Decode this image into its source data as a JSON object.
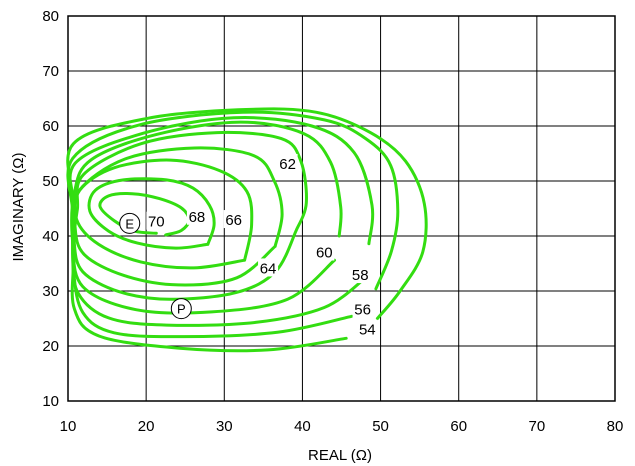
{
  "chart_data": {
    "type": "line",
    "xlabel": "REAL (Ω)",
    "ylabel": "IMAGINARY (Ω)",
    "xlim": [
      10,
      80
    ],
    "ylim": [
      10,
      80
    ],
    "x_ticks": [
      10,
      20,
      30,
      40,
      50,
      60,
      70,
      80
    ],
    "y_ticks": [
      10,
      20,
      30,
      40,
      50,
      60,
      70,
      80
    ],
    "grid": true,
    "line_color": "#33dd11",
    "contours": [
      {
        "label": "70",
        "label_pos": [
          21.3,
          42.6
        ],
        "points": [
          [
            21.3,
            40.5
          ],
          [
            18.5,
            40.9
          ],
          [
            15.9,
            42.8
          ],
          [
            14.1,
            45.4
          ],
          [
            15.2,
            47.3
          ],
          [
            18.2,
            47.7
          ],
          [
            21.7,
            46.8
          ],
          [
            24.5,
            45.1
          ],
          [
            25.5,
            42.9
          ],
          [
            24.5,
            41.0
          ],
          [
            22.5,
            40.2
          ]
        ]
      },
      {
        "label": "68",
        "label_pos": [
          26.5,
          43.5
        ],
        "points": [
          [
            27.9,
            38.5
          ],
          [
            23.8,
            37.8
          ],
          [
            18.9,
            38.7
          ],
          [
            15.2,
            40.9
          ],
          [
            12.8,
            44.5
          ],
          [
            13.5,
            48.3
          ],
          [
            17.1,
            50.2
          ],
          [
            22.6,
            50.2
          ],
          [
            26.0,
            48.7
          ],
          [
            28.1,
            45.6
          ],
          [
            28.7,
            42.1
          ],
          [
            27.9,
            38.5
          ]
        ]
      },
      {
        "label": "66",
        "label_pos": [
          31.2,
          42.9
        ],
        "points": [
          [
            32.6,
            35.6
          ],
          [
            26.1,
            34.2
          ],
          [
            19.3,
            35.3
          ],
          [
            13.9,
            38.5
          ],
          [
            11.1,
            43.0
          ],
          [
            11.5,
            48.3
          ],
          [
            15.9,
            52.4
          ],
          [
            23.1,
            53.8
          ],
          [
            29.4,
            51.9
          ],
          [
            32.9,
            48.1
          ],
          [
            33.5,
            42.0
          ],
          [
            32.6,
            35.6
          ]
        ]
      },
      {
        "label": "64",
        "label_pos": [
          35.6,
          34.1
        ],
        "points": [
          [
            36.5,
            38.1
          ],
          [
            31.6,
            32.4
          ],
          [
            24.1,
            31.1
          ],
          [
            17.2,
            32.8
          ],
          [
            12.1,
            36.6
          ],
          [
            10.9,
            41.8
          ],
          [
            11.4,
            48.2
          ],
          [
            17.3,
            54.0
          ],
          [
            26.2,
            56.0
          ],
          [
            33.8,
            54.6
          ],
          [
            36.4,
            50.0
          ],
          [
            37.4,
            44.0
          ],
          [
            36.5,
            38.1
          ]
        ]
      },
      {
        "label": "62",
        "label_pos": [
          38.1,
          53.1
        ],
        "points": [
          [
            39.2,
            41.0
          ],
          [
            36.6,
            33.6
          ],
          [
            31.5,
            29.7
          ],
          [
            23.0,
            28.5
          ],
          [
            16.5,
            29.9
          ],
          [
            11.9,
            33.5
          ],
          [
            10.8,
            38.7
          ],
          [
            11.2,
            44.9
          ],
          [
            12.0,
            51.2
          ],
          [
            19.4,
            56.8
          ],
          [
            29.1,
            58.8
          ],
          [
            37.3,
            57.7
          ],
          [
            39.8,
            53.6
          ],
          [
            40.5,
            46.0
          ],
          [
            39.2,
            41.0
          ]
        ]
      },
      {
        "label": "60",
        "label_pos": [
          42.8,
          37.0
        ],
        "points": [
          [
            44.1,
            35.6
          ],
          [
            38.1,
            28.5
          ],
          [
            28.4,
            26.2
          ],
          [
            18.7,
            26.6
          ],
          [
            11.9,
            30.8
          ],
          [
            10.6,
            38.8
          ],
          [
            10.8,
            47.8
          ],
          [
            13.0,
            53.9
          ],
          [
            21.4,
            58.5
          ],
          [
            32.1,
            60.7
          ],
          [
            40.2,
            58.6
          ],
          [
            43.6,
            53.4
          ],
          [
            44.9,
            45.3
          ],
          [
            44.7,
            40.0
          ]
        ]
      },
      {
        "label": "58",
        "label_pos": [
          47.4,
          32.9
        ],
        "points": [
          [
            48.0,
            32.3
          ],
          [
            42.8,
            27.0
          ],
          [
            34.0,
            24.3
          ],
          [
            22.6,
            23.8
          ],
          [
            15.2,
            25.1
          ],
          [
            11.3,
            29.6
          ],
          [
            10.6,
            36.4
          ],
          [
            10.9,
            44.4
          ],
          [
            10.9,
            53.2
          ],
          [
            19.7,
            58.7
          ],
          [
            31.2,
            61.5
          ],
          [
            41.2,
            60.0
          ],
          [
            46.6,
            55.2
          ],
          [
            48.9,
            45.6
          ],
          [
            48.5,
            38.6
          ]
        ]
      },
      {
        "label": "56",
        "label_pos": [
          47.7,
          26.6
        ],
        "points": [
          [
            46.3,
            25.4
          ],
          [
            36.8,
            22.5
          ],
          [
            24.8,
            21.7
          ],
          [
            15.9,
            22.4
          ],
          [
            11.9,
            26.1
          ],
          [
            10.7,
            33.8
          ],
          [
            10.6,
            44.2
          ],
          [
            10.6,
            54.1
          ],
          [
            18.9,
            60.1
          ],
          [
            32.4,
            62.5
          ],
          [
            42.8,
            61.1
          ],
          [
            48.1,
            57.7
          ],
          [
            51.3,
            52.8
          ],
          [
            52.2,
            44.5
          ],
          [
            51.4,
            37.3
          ],
          [
            49.4,
            30.4
          ]
        ]
      },
      {
        "label": "54",
        "label_pos": [
          48.3,
          23.0
        ],
        "points": [
          [
            45.6,
            21.4
          ],
          [
            35.6,
            19.3
          ],
          [
            24.3,
            19.6
          ],
          [
            14.0,
            21.8
          ],
          [
            10.8,
            26.8
          ],
          [
            10.7,
            35.9
          ],
          [
            10.6,
            46.5
          ],
          [
            10.7,
            56.8
          ],
          [
            20.2,
            61.4
          ],
          [
            32.8,
            63.0
          ],
          [
            41.8,
            62.5
          ],
          [
            48.7,
            58.8
          ],
          [
            53.2,
            53.6
          ],
          [
            55.6,
            45.9
          ],
          [
            55.4,
            37.1
          ],
          [
            52.5,
            30.0
          ],
          [
            49.6,
            25.0
          ]
        ]
      }
    ],
    "markers": [
      {
        "label": "E",
        "x": 17.9,
        "y": 42.3
      },
      {
        "label": "P",
        "x": 24.5,
        "y": 26.8
      }
    ]
  }
}
